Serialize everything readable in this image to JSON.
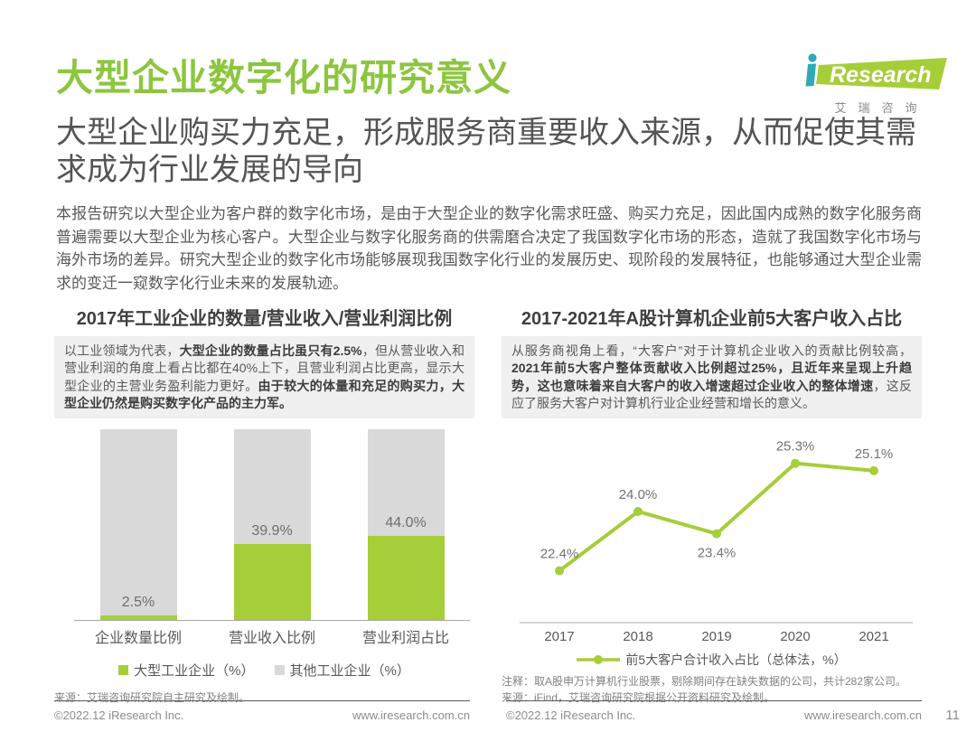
{
  "page": {
    "title": "大型企业数字化的研究意义",
    "subtitle": "大型企业购买力充足，形成服务商重要收入来源，从而促使其需求成为行业发展的导向",
    "intro": "本报告研究以大型企业为客户群的数字化市场，是由于大型企业的数字化需求旺盛、购买力充足，因此国内成熟的数字化服务商普遍需要以大型企业为核心客户。大型企业与数字化服务商的供需磨合决定了我国数字化市场的形态，造就了我国数字化市场与海外市场的差异。研究大型企业的数字化市场能够展现我国数字化行业的发展历史、现阶段的发展特征，也能够通过大型企业需求的变迁一窥数字化行业未来的发展轨迹。",
    "page_number": "11",
    "accent_green": "#8CC63F"
  },
  "logo": {
    "brand_i": "i",
    "brand_rest": "Research",
    "caption": "艾瑞咨询",
    "banner_green": "#A6CE39",
    "i_teal": "#2FAAB5"
  },
  "left_section": {
    "title": "2017年工业企业的数量/营业收入/营业利润比例",
    "summary_segments": [
      {
        "text": "以工业领域为代表，",
        "bold": false
      },
      {
        "text": "大型企业的数量占比虽只有2.5%",
        "bold": true
      },
      {
        "text": "，但从营业收入和营业利润的角度上看占比都在40%上下，且营业利润占比更高，显示大型企业的主营业务盈利能力更好。",
        "bold": false
      },
      {
        "text": "由于较大的体量和充足的购买力，大型企业仍然是购买数字化产品的主力军。",
        "bold": true
      }
    ],
    "source": "来源：艾瑞咨询研究院自主研究及绘制。"
  },
  "right_section": {
    "title": "2017-2021年A股计算机企业前5大客户收入占比",
    "summary_segments": [
      {
        "text": "从服务商视角上看，“大客户”对于计算机企业收入的贡献比例较高，",
        "bold": false
      },
      {
        "text": "2021年前5大客户整体贡献收入比例超过25%，且近年来呈现上升趋势，这也意味着来自大客户的收入增速超过企业收入的整体增速",
        "bold": true
      },
      {
        "text": "，这反应了服务大客户对计算机行业企业经营和增长的意义。",
        "bold": false
      }
    ],
    "note": "注释：取A股申万计算机行业股票，剔除期间存在缺失数据的公司，共计282家公司。",
    "source": "来源：iFind，艾瑞咨询研究院根据公开资料研究及绘制。"
  },
  "footer": {
    "left_copyright": "©2022.12 iResearch Inc.",
    "left_url": "www.iresearch.com.cn",
    "right_copyright": "©2022.12 iResearch Inc.",
    "right_url": "www.iresearch.com.cn"
  },
  "chart_data": [
    {
      "type": "bar",
      "stacked": true,
      "title": "2017年工业企业的数量/营业收入/营业利润比例",
      "categories": [
        "企业数量比例",
        "营业收入比例",
        "营业利润占比"
      ],
      "series": [
        {
          "name": "大型工业企业（%）",
          "color": "#A5CE39",
          "values": [
            2.5,
            39.9,
            44.0
          ]
        },
        {
          "name": "其他工业企业（%）",
          "color": "#D9D9D9",
          "values": [
            97.5,
            60.1,
            56.0
          ]
        }
      ],
      "value_labels": [
        "2.5%",
        "39.9%",
        "44.0%"
      ],
      "ylabel": "",
      "xlabel": "",
      "ylim": [
        0,
        100
      ],
      "grid": false,
      "legend_position": "bottom"
    },
    {
      "type": "line",
      "title": "2017-2021年A股计算机企业前5大客户收入占比",
      "x": [
        "2017",
        "2018",
        "2019",
        "2020",
        "2021"
      ],
      "values": [
        22.4,
        24.0,
        23.4,
        25.3,
        25.1
      ],
      "point_labels": [
        "22.4%",
        "24.0%",
        "23.4%",
        "25.3%",
        "25.1%"
      ],
      "label_position": [
        "above",
        "above",
        "below",
        "above",
        "above"
      ],
      "series_name": "前5大客户合计收入占比（总体法，%）",
      "color": "#A5CE39",
      "ylabel": "",
      "xlabel": "",
      "ylim": [
        21,
        27
      ],
      "grid": false,
      "legend_position": "bottom"
    }
  ]
}
